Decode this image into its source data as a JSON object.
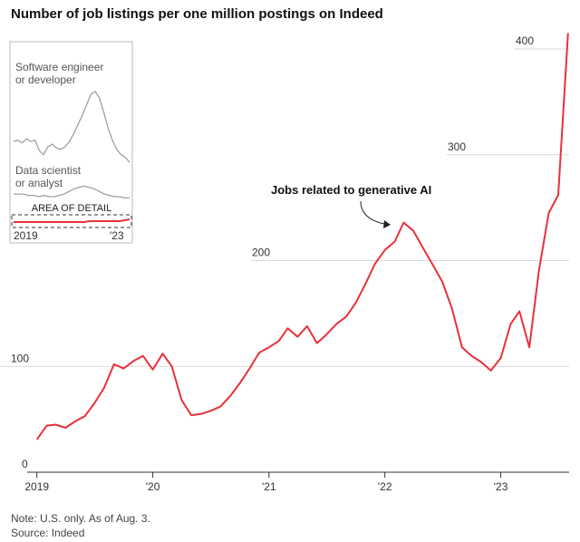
{
  "chart_data": {
    "type": "line",
    "title": "Number of job listings per one million postings on Indeed",
    "y_ticks": [
      "0",
      "100",
      "200",
      "300",
      "400"
    ],
    "y_tick_values": [
      0,
      100,
      200,
      300,
      400
    ],
    "ylim": [
      0,
      430
    ],
    "x_ticks": [
      "2019",
      "'20",
      "'21",
      "'22",
      "'23"
    ],
    "x_tick_values": [
      "2019-01-01",
      "2020-01-01",
      "2021-01-01",
      "2022-01-01",
      "2023-01-01"
    ],
    "xlim": [
      "2018-11-20",
      "2023-08-10"
    ],
    "grid": true,
    "series": [
      {
        "name": "Jobs related to generative AI",
        "color": "#e8313a",
        "x": [
          "2019-01-01",
          "2019-02-01",
          "2019-03-01",
          "2019-04-01",
          "2019-05-01",
          "2019-06-01",
          "2019-07-01",
          "2019-08-01",
          "2019-09-01",
          "2019-10-01",
          "2019-11-01",
          "2019-12-01",
          "2020-01-01",
          "2020-02-01",
          "2020-03-01",
          "2020-04-01",
          "2020-05-01",
          "2020-06-01",
          "2020-07-01",
          "2020-08-01",
          "2020-09-01",
          "2020-10-01",
          "2020-11-01",
          "2020-12-01",
          "2021-01-01",
          "2021-02-01",
          "2021-03-01",
          "2021-04-01",
          "2021-05-01",
          "2021-06-01",
          "2021-07-01",
          "2021-08-01",
          "2021-09-01",
          "2021-10-01",
          "2021-11-01",
          "2021-12-01",
          "2022-01-01",
          "2022-02-01",
          "2022-03-01",
          "2022-04-01",
          "2022-05-01",
          "2022-06-01",
          "2022-07-01",
          "2022-08-01",
          "2022-09-01",
          "2022-10-01",
          "2022-11-01",
          "2022-12-01",
          "2023-01-01",
          "2023-02-01",
          "2023-03-01",
          "2023-04-01",
          "2023-05-01",
          "2023-06-01",
          "2023-07-01",
          "2023-08-01"
        ],
        "values": [
          31,
          44,
          45,
          42,
          48,
          53,
          65,
          80,
          102,
          98,
          105,
          110,
          97,
          112,
          100,
          68,
          54,
          55,
          58,
          62,
          72,
          84,
          98,
          113,
          118,
          124,
          136,
          128,
          138,
          122,
          130,
          140,
          147,
          160,
          178,
          197,
          210,
          218,
          236,
          228,
          212,
          196,
          180,
          154,
          118,
          110,
          104,
          96,
          108,
          140,
          152,
          118,
          190,
          245,
          262,
          415
        ]
      }
    ]
  },
  "inset": {
    "software_label_1": "Software engineer",
    "software_label_2": "or developer",
    "data_label_1": "Data scientist",
    "data_label_2": "or analyst",
    "area_label": "AREA OF DETAIL",
    "x_start": "2019",
    "x_end": "'23",
    "software_values": [
      62,
      63,
      61,
      64,
      62,
      63,
      55,
      52,
      58,
      60,
      57,
      56,
      58,
      62,
      68,
      75,
      82,
      90,
      98,
      100,
      95,
      84,
      72,
      63,
      56,
      52,
      50,
      46
    ],
    "data_values": [
      22,
      22,
      22,
      21,
      21,
      20,
      21,
      20,
      20,
      21,
      22,
      24,
      26,
      27,
      28,
      27,
      26,
      24,
      22,
      21,
      20,
      20,
      19,
      19
    ],
    "ai_values": [
      4,
      4,
      4,
      4,
      4,
      4,
      4,
      4,
      4,
      4,
      4,
      4,
      4,
      4,
      4,
      5,
      5,
      5,
      5,
      5,
      5,
      5,
      6,
      7
    ],
    "software_color": "#a0a0a0",
    "data_color": "#a0a0a0",
    "ai_color": "#e8313a"
  },
  "annotation": "Jobs related to generative AI",
  "note": "Note: U.S. only. As of Aug. 3.",
  "source": "Source: Indeed"
}
